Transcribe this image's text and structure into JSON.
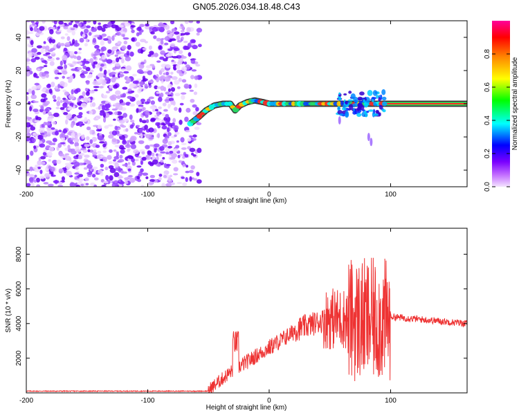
{
  "title": "GN05.2026.034.18.48.C43",
  "chart_data": [
    {
      "type": "heatmap",
      "name": "spectrogram",
      "xlabel": "Height of straight line (km)",
      "ylabel": "Frequency (Hz)",
      "xlim": [
        -200,
        163
      ],
      "ylim": [
        -50,
        50
      ],
      "x_ticks": [
        -200,
        -100,
        0,
        100
      ],
      "y_ticks": [
        -40,
        -20,
        0,
        20,
        40
      ],
      "noise_region_x": [
        -200,
        -57
      ],
      "signal_track": [
        {
          "x": -65,
          "y": -12
        },
        {
          "x": -58,
          "y": -8
        },
        {
          "x": -52,
          "y": -4
        },
        {
          "x": -45,
          "y": -1
        },
        {
          "x": -38,
          "y": 0
        },
        {
          "x": -32,
          "y": 0
        },
        {
          "x": -28,
          "y": -4
        },
        {
          "x": -24,
          "y": -1
        },
        {
          "x": -18,
          "y": 1
        },
        {
          "x": -12,
          "y": 2
        },
        {
          "x": -5,
          "y": 1
        },
        {
          "x": 0,
          "y": 0
        },
        {
          "x": 60,
          "y": 0
        },
        {
          "x": 163,
          "y": 0
        }
      ],
      "colorbar": {
        "label": "Normalized spectral amplitude",
        "range": [
          0,
          1
        ],
        "ticks": [
          "0.0",
          "0.2",
          "0.4",
          "0.6",
          "0.8"
        ]
      }
    },
    {
      "type": "line",
      "name": "snr",
      "xlabel": "Height of straight line (km)",
      "ylabel": "SNR (10 * v/v)",
      "xlim": [
        -200,
        163
      ],
      "ylim": [
        0,
        9500
      ],
      "x_ticks": [
        -200,
        -100,
        0,
        100
      ],
      "y_ticks": [
        2000,
        4000,
        6000,
        8000
      ],
      "color": "#ee3333",
      "segments": [
        {
          "x": [
            -200,
            -50
          ],
          "level": 100,
          "jitter": 25
        },
        {
          "x": [
            -50,
            -30
          ],
          "level_from": 150,
          "level_to": 1300,
          "jitter": 400
        },
        {
          "x": [
            -30,
            -25
          ],
          "level": 2900,
          "jitter": 700
        },
        {
          "x": [
            -25,
            0
          ],
          "level_from": 1500,
          "level_to": 2600,
          "jitter": 450
        },
        {
          "x": [
            0,
            20
          ],
          "level_from": 2600,
          "level_to": 3500,
          "jitter": 500
        },
        {
          "x": [
            20,
            45
          ],
          "level_from": 3600,
          "level_to": 4200,
          "jitter": 700
        },
        {
          "x": [
            45,
            65
          ],
          "level": 4300,
          "jitter": 1800
        },
        {
          "x": [
            65,
            100
          ],
          "level": 4200,
          "jitter": 3600
        },
        {
          "x": [
            100,
            163
          ],
          "level_from": 4400,
          "level_to": 4000,
          "jitter": 200
        }
      ]
    }
  ]
}
